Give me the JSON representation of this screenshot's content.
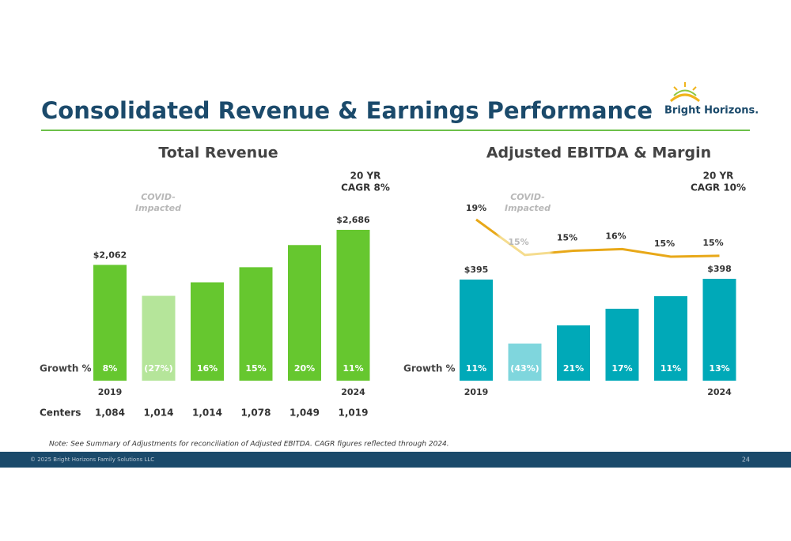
{
  "header": {
    "title": "Consolidated Revenue & Earnings Performance",
    "logo": "Bright Horizons."
  },
  "chart_data": [
    {
      "type": "bar",
      "title": "Total Revenue",
      "categories": [
        "2019",
        null,
        null,
        null,
        null,
        "2024"
      ],
      "values": [
        2062,
        1511,
        1751,
        2020,
        2415,
        2686
      ],
      "value_labels": [
        "$2,062",
        null,
        null,
        null,
        null,
        "$2,686"
      ],
      "colors": [
        "#66c72f",
        "#b5e59a",
        "#66c72f",
        "#66c72f",
        "#66c72f",
        "#66c72f"
      ],
      "growth": {
        "label": "Growth %",
        "values": [
          8,
          -27,
          16,
          15,
          20,
          11
        ],
        "value_labels": [
          "8%",
          "(27%)",
          "16%",
          "15%",
          "20%",
          "11%"
        ]
      },
      "centers": {
        "label": "Centers",
        "values": [
          1084,
          1014,
          1014,
          1078,
          1049,
          1019
        ],
        "value_labels": [
          "1,084",
          "1,014",
          "1,014",
          "1,078",
          "1,049",
          "1,019"
        ]
      },
      "annotations": {
        "covid": [
          "COVID-",
          "Impacted"
        ],
        "cagr": [
          "20 YR",
          "CAGR 8%"
        ]
      }
    },
    {
      "type": "combo",
      "title": "Adjusted EBITDA & Margin",
      "categories": [
        "2019",
        null,
        null,
        null,
        null,
        "2024"
      ],
      "values": [
        395,
        145,
        216,
        281,
        330,
        398
      ],
      "value_labels": [
        "$395",
        null,
        null,
        null,
        null,
        "$398"
      ],
      "colors": [
        "#00a9b8",
        "#7fd6dd",
        "#00a9b8",
        "#00a9b8",
        "#00a9b8",
        "#00a9b8"
      ],
      "growth": {
        "label": "Growth %",
        "values": [
          11,
          -43,
          21,
          17,
          11,
          13
        ],
        "value_labels": [
          "11%",
          "(43%)",
          "21%",
          "17%",
          "11%",
          "13%"
        ]
      },
      "line": {
        "color": "#e8a818",
        "values": [
          19.1,
          14.9,
          15.4,
          15.6,
          14.7,
          14.8
        ],
        "value_labels": [
          "19%",
          "15%",
          "15%",
          "16%",
          "15%",
          "15%"
        ]
      },
      "annotations": {
        "covid": [
          "COVID-",
          "Impacted"
        ],
        "cagr": [
          "20 YR",
          "CAGR 10%"
        ]
      }
    }
  ],
  "note": "Note: See Summary of Adjustments for reconciliation of Adjusted EBITDA. CAGR figures reflected through 2024.",
  "footer": {
    "copyright": "© 2025 Bright Horizons Family Solutions LLC",
    "page": "24"
  }
}
